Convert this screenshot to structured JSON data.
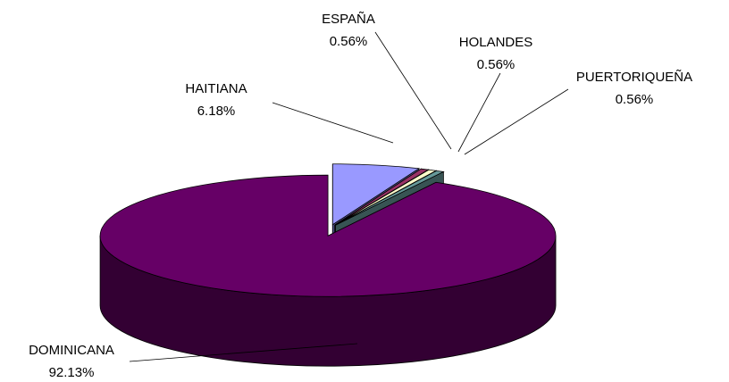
{
  "chart_data": {
    "type": "pie3d",
    "categories": [
      "HAITIANA",
      "ESPAÑA",
      "HOLANDES",
      "PUERTORIQUEÑA",
      "DOMINICANA"
    ],
    "values": [
      6.18,
      0.56,
      0.56,
      0.56,
      92.13
    ],
    "value_labels": [
      "6.18%",
      "0.56%",
      "0.56%",
      "0.56%",
      "92.13%"
    ],
    "colors": [
      "#9999ff",
      "#993366",
      "#ffffcc",
      "#669999",
      "#660066"
    ]
  }
}
